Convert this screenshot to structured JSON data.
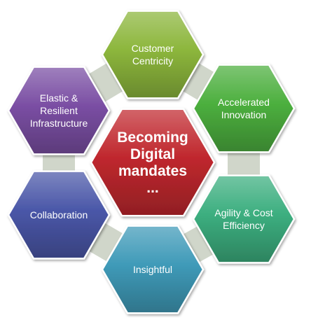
{
  "center": {
    "label_lines": [
      "Becoming",
      "Digital",
      "mandates",
      "..."
    ]
  },
  "nodes": [
    {
      "id": "customer-centricity",
      "lines": [
        "Customer",
        "Centricity"
      ],
      "color": "#8cb63c"
    },
    {
      "id": "accelerated-innovation",
      "lines": [
        "Accelerated",
        "Innovation"
      ],
      "color": "#4caf3e"
    },
    {
      "id": "agility-cost-efficiency",
      "lines": [
        "Agility & Cost",
        "Efficiency"
      ],
      "color": "#3cae7f"
    },
    {
      "id": "insightful",
      "lines": [
        "Insightful"
      ],
      "color": "#3f9ab8"
    },
    {
      "id": "collaboration",
      "lines": [
        "Collaboration"
      ],
      "color": "#4a57a8"
    },
    {
      "id": "elastic-resilient-infrastructure",
      "lines": [
        "Elastic &",
        "Resilient",
        "Infrastructure"
      ],
      "color": "#7a4ea3"
    }
  ],
  "colors": {
    "center": "#c0282e",
    "connector": "#c8cfc1",
    "text": "#ffffff"
  }
}
